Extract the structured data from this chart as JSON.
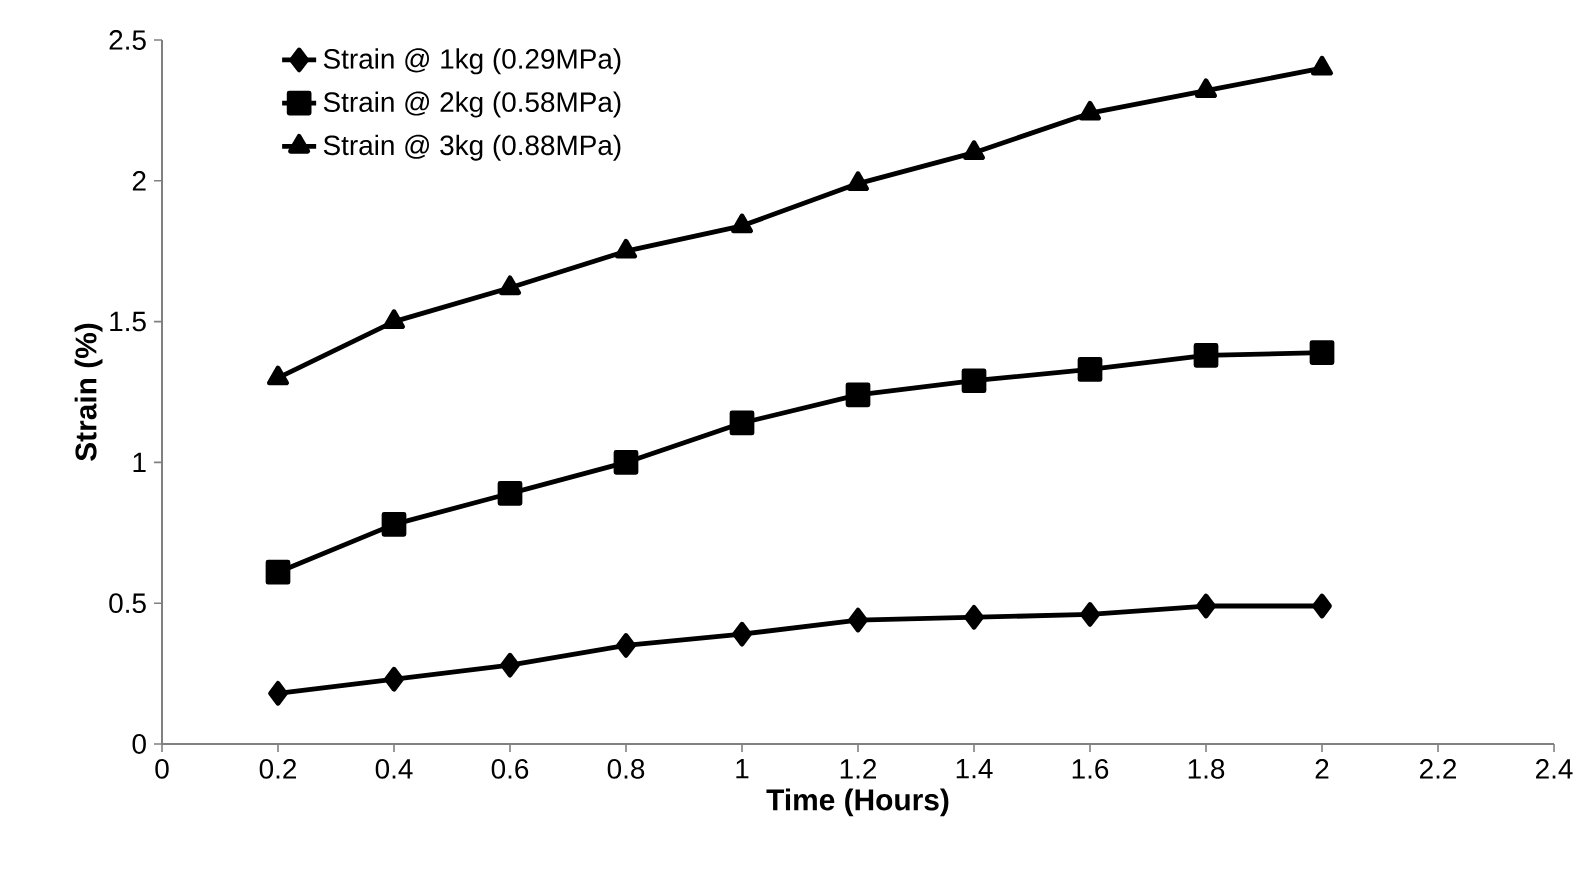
{
  "chart_data": {
    "type": "line",
    "xlabel": "Time (Hours)",
    "ylabel": "Strain (%)",
    "x": [
      0.2,
      0.4,
      0.6,
      0.8,
      1.0,
      1.2,
      1.4,
      1.6,
      1.8,
      2.0
    ],
    "series": [
      {
        "name": "Strain @ 1kg (0.29MPa)",
        "color": "#000000",
        "marker": "diamond",
        "values": [
          0.18,
          0.23,
          0.28,
          0.35,
          0.39,
          0.44,
          0.45,
          0.46,
          0.49,
          0.49
        ]
      },
      {
        "name": "Strain @ 2kg (0.58MPa)",
        "color": "#000000",
        "marker": "square",
        "values": [
          0.61,
          0.78,
          0.89,
          1.0,
          1.14,
          1.24,
          1.29,
          1.33,
          1.38,
          1.39
        ]
      },
      {
        "name": "Strain @ 3kg (0.88MPa)",
        "color": "#000000",
        "marker": "triangle",
        "values": [
          1.3,
          1.5,
          1.62,
          1.75,
          1.84,
          1.99,
          2.1,
          2.24,
          2.32,
          2.4
        ]
      }
    ],
    "xlim": [
      0,
      2.4
    ],
    "xticks": [
      0,
      0.2,
      0.4,
      0.6,
      0.8,
      1,
      1.2,
      1.4,
      1.6,
      1.8,
      2,
      2.2,
      2.4
    ],
    "ylim": [
      0,
      2.5
    ],
    "yticks": [
      0,
      0.5,
      1,
      1.5,
      2,
      2.5
    ],
    "grid": false,
    "legend": "top left",
    "line_style": "solid"
  }
}
